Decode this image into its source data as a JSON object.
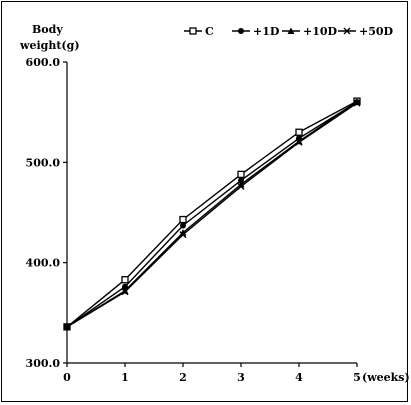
{
  "chart_data": {
    "type": "line",
    "ylabel_line1": "Body",
    "ylabel_line2": "weight(g)",
    "x_unit": "(weeks)",
    "x": [
      0,
      1,
      2,
      3,
      4,
      5
    ],
    "ylim": [
      300,
      600
    ],
    "yticks": [
      300,
      400,
      500,
      600
    ],
    "ytick_labels": [
      "300.0",
      "400.0",
      "500.0",
      "600.0"
    ],
    "xtick_labels": [
      "0",
      "1",
      "2",
      "3",
      "4",
      "5"
    ],
    "grid": false,
    "legend_position": "top",
    "series": [
      {
        "name": "C",
        "marker": "square",
        "values": [
          336,
          383,
          443,
          488,
          530,
          561
        ]
      },
      {
        "name": "+1D",
        "marker": "circle",
        "values": [
          336,
          376,
          437,
          482,
          524,
          560
        ]
      },
      {
        "name": "+10D",
        "marker": "triangle",
        "values": [
          336,
          372,
          430,
          478,
          521,
          560
        ]
      },
      {
        "name": "+50D",
        "marker": "x",
        "values": [
          336,
          371,
          428,
          476,
          520,
          559
        ]
      }
    ],
    "color": "#000000"
  }
}
